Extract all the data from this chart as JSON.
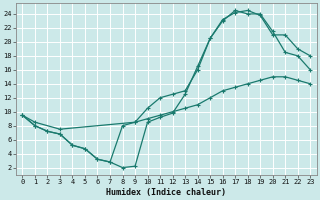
{
  "xlabel": "Humidex (Indice chaleur)",
  "ylabel": "",
  "xlim": [
    -0.5,
    23.5
  ],
  "ylim": [
    1,
    25.5
  ],
  "xticks": [
    0,
    1,
    2,
    3,
    4,
    5,
    6,
    7,
    8,
    9,
    10,
    11,
    12,
    13,
    14,
    15,
    16,
    17,
    18,
    19,
    20,
    21,
    22,
    23
  ],
  "yticks": [
    2,
    4,
    6,
    8,
    10,
    12,
    14,
    16,
    18,
    20,
    22,
    24
  ],
  "bg_color": "#cce9e9",
  "grid_color": "#b0d4d4",
  "line_color": "#1a7a6e",
  "line1_x": [
    0,
    1,
    2,
    3,
    4,
    5,
    6,
    7,
    8,
    9,
    10,
    11,
    12,
    13,
    14,
    15,
    16,
    17,
    18,
    19,
    20,
    21,
    22,
    23
  ],
  "line1_y": [
    9.5,
    8.0,
    7.2,
    6.8,
    5.2,
    4.7,
    3.2,
    2.8,
    2.0,
    2.2,
    8.5,
    9.2,
    9.8,
    12.5,
    16.5,
    20.5,
    23.0,
    24.5,
    24.0,
    24.0,
    21.5,
    18.5,
    18.0,
    16.0
  ],
  "line2_x": [
    0,
    1,
    2,
    3,
    4,
    5,
    6,
    7,
    8,
    9,
    10,
    11,
    12,
    13,
    14,
    15,
    16,
    17,
    18,
    19,
    20,
    21,
    22,
    23
  ],
  "line2_y": [
    9.5,
    8.0,
    7.2,
    6.8,
    5.2,
    4.7,
    3.2,
    2.8,
    8.0,
    8.5,
    10.5,
    12.0,
    12.5,
    13.0,
    16.0,
    20.5,
    23.2,
    24.2,
    24.5,
    23.8,
    21.0,
    21.0,
    19.0,
    18.0
  ],
  "line3_x": [
    0,
    1,
    3,
    9,
    10,
    11,
    12,
    13,
    14,
    15,
    16,
    17,
    18,
    19,
    20,
    21,
    22,
    23
  ],
  "line3_y": [
    9.5,
    8.5,
    7.5,
    8.5,
    9.0,
    9.5,
    10.0,
    10.5,
    11.0,
    12.0,
    13.0,
    13.5,
    14.0,
    14.5,
    15.0,
    15.0,
    14.5,
    14.0
  ]
}
